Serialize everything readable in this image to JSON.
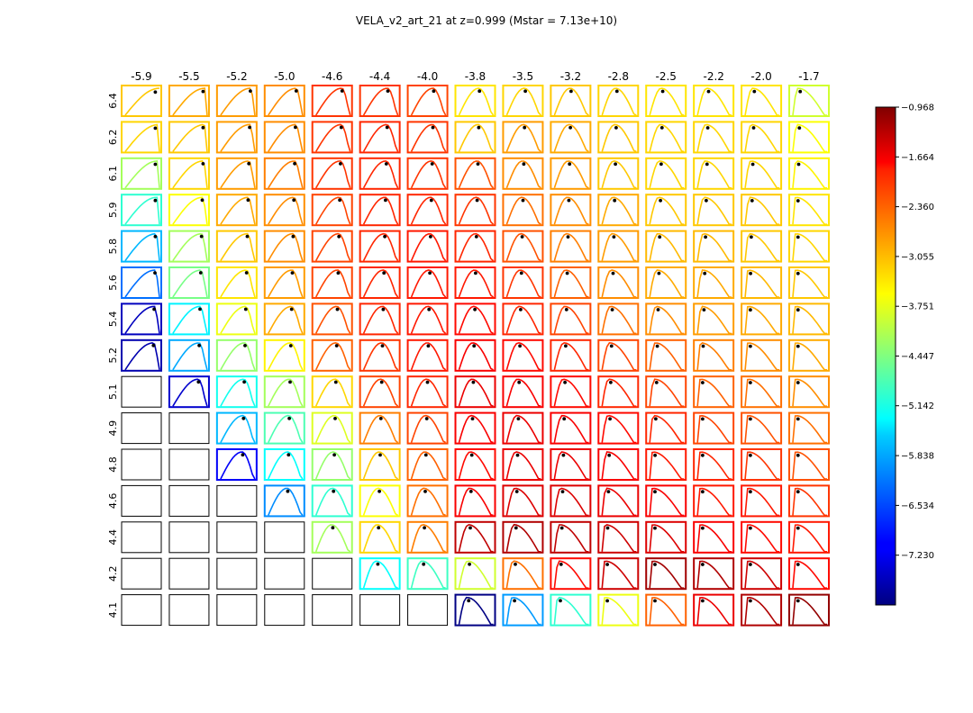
{
  "chart_data": {
    "type": "heatmap",
    "title": "VELA_v2_art_21 at z=0.999 (Mstar = 7.13e+10)",
    "column_labels": [
      "-5.9",
      "-5.5",
      "-5.2",
      "-5.0",
      "-4.6",
      "-4.4",
      "-4.0",
      "-3.8",
      "-3.5",
      "-3.2",
      "-2.8",
      "-2.5",
      "-2.2",
      "-2.0",
      "-1.7"
    ],
    "row_labels": [
      "6.4",
      "6.2",
      "6.1",
      "5.9",
      "5.8",
      "5.6",
      "5.4",
      "5.2",
      "5.1",
      "4.9",
      "4.8",
      "4.6",
      "4.4",
      "4.2",
      "4.1"
    ],
    "colorbar": {
      "cmap": "jet",
      "vmin": -7.926,
      "vmax": -0.968,
      "ticks": [
        -0.968,
        -1.664,
        -2.36,
        -3.055,
        -3.751,
        -4.447,
        -5.142,
        -5.838,
        -6.534,
        -7.23
      ],
      "tick_labels": [
        "−0.968",
        "−1.664",
        "−2.360",
        "−3.055",
        "−3.751",
        "−4.447",
        "−5.142",
        "−5.838",
        "−6.534",
        "−7.230"
      ]
    },
    "panel_values": [
      [
        -3.2,
        -3.0,
        -2.9,
        -2.8,
        -2.2,
        -2.2,
        -2.3,
        -3.4,
        -3.3,
        -3.2,
        -3.3,
        -3.4,
        -3.4,
        -3.4,
        -3.9
      ],
      [
        -3.3,
        -3.2,
        -2.9,
        -2.8,
        -2.2,
        -2.1,
        -2.2,
        -3.2,
        -2.9,
        -3.0,
        -3.2,
        -3.3,
        -3.3,
        -3.3,
        -3.6
      ],
      [
        -4.2,
        -3.3,
        -2.9,
        -2.7,
        -2.2,
        -2.1,
        -2.2,
        -2.4,
        -2.8,
        -2.9,
        -3.2,
        -3.3,
        -3.3,
        -3.3,
        -3.5
      ],
      [
        -5.0,
        -3.6,
        -3.0,
        -2.8,
        -2.3,
        -2.1,
        -2.1,
        -2.2,
        -2.6,
        -2.8,
        -3.0,
        -3.2,
        -3.2,
        -3.2,
        -3.4
      ],
      [
        -5.8,
        -4.2,
        -3.2,
        -2.8,
        -2.3,
        -2.1,
        -2.0,
        -2.1,
        -2.4,
        -2.7,
        -2.9,
        -3.1,
        -3.1,
        -3.2,
        -3.3
      ],
      [
        -6.3,
        -4.5,
        -3.4,
        -2.9,
        -2.3,
        -2.1,
        -2.0,
        -2.0,
        -2.2,
        -2.5,
        -2.8,
        -3.0,
        -3.0,
        -3.1,
        -3.2
      ],
      [
        -7.5,
        -5.4,
        -3.7,
        -3.0,
        -2.4,
        -2.1,
        -2.0,
        -1.9,
        -2.1,
        -2.3,
        -2.6,
        -2.8,
        -2.9,
        -3.0,
        -3.1
      ],
      [
        -7.6,
        -5.9,
        -4.3,
        -3.5,
        -2.5,
        -2.2,
        -2.0,
        -1.8,
        -1.9,
        -2.1,
        -2.3,
        -2.5,
        -2.7,
        -2.8,
        -3.0
      ],
      [
        null,
        -7.4,
        -5.2,
        -4.2,
        -3.3,
        -2.3,
        -2.1,
        -1.7,
        -1.8,
        -1.9,
        -2.1,
        -2.3,
        -2.5,
        -2.6,
        -2.8
      ],
      [
        null,
        null,
        -5.8,
        -4.8,
        -3.8,
        -2.7,
        -2.3,
        -1.8,
        -1.7,
        -1.8,
        -1.9,
        -2.1,
        -2.3,
        -2.4,
        -2.6
      ],
      [
        null,
        null,
        -7.1,
        -5.3,
        -4.3,
        -3.2,
        -2.5,
        -1.9,
        -1.7,
        -1.7,
        -1.8,
        -2.0,
        -2.1,
        -2.2,
        -2.4
      ],
      [
        null,
        null,
        null,
        -6.1,
        -5.0,
        -3.6,
        -2.6,
        -1.8,
        -1.6,
        -1.6,
        -1.7,
        -1.8,
        -2.0,
        -2.0,
        -2.2
      ],
      [
        null,
        null,
        null,
        null,
        -4.2,
        -3.3,
        -2.7,
        -1.4,
        -1.3,
        -1.4,
        -1.5,
        -1.6,
        -1.8,
        -1.9,
        -2.0
      ],
      [
        null,
        null,
        null,
        null,
        null,
        -5.3,
        -4.9,
        -3.9,
        -2.6,
        -1.9,
        -1.5,
        -1.2,
        -1.3,
        -1.5,
        -1.9
      ],
      [
        null,
        null,
        null,
        null,
        null,
        null,
        null,
        -7.9,
        -6.0,
        -5.0,
        -3.7,
        -2.5,
        -1.7,
        -1.3,
        -1.1
      ]
    ]
  }
}
